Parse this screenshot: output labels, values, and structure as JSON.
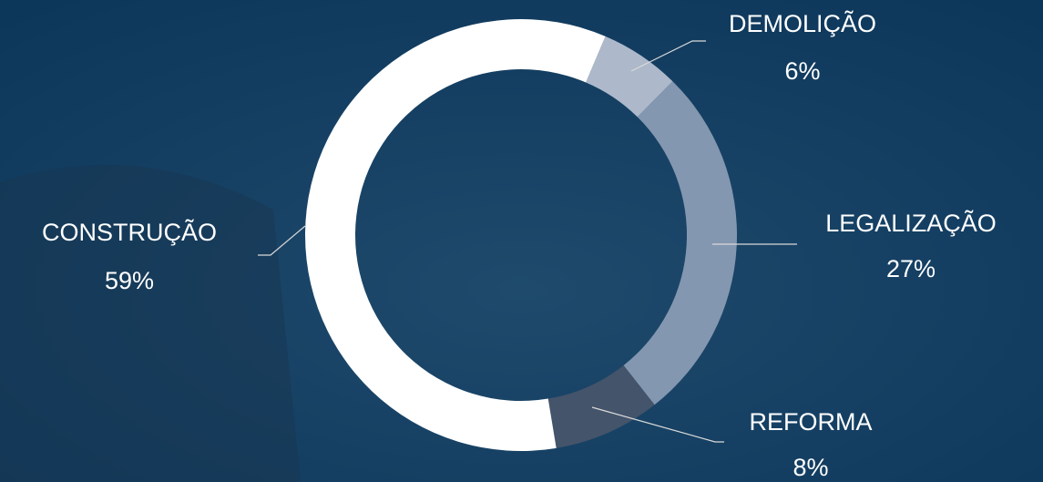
{
  "chart_data": {
    "type": "donut",
    "categories": [
      "DEMOLIÇÃO",
      "LEGALIZAÇÃO",
      "REFORMA",
      "CONSTRUÇÃO"
    ],
    "values": [
      6,
      27,
      8,
      59
    ],
    "value_labels": [
      "6%",
      "27%",
      "8%",
      "59%"
    ],
    "colors": [
      "#adb9ca",
      "#8497b0",
      "#44546a",
      "#ffffff"
    ]
  }
}
